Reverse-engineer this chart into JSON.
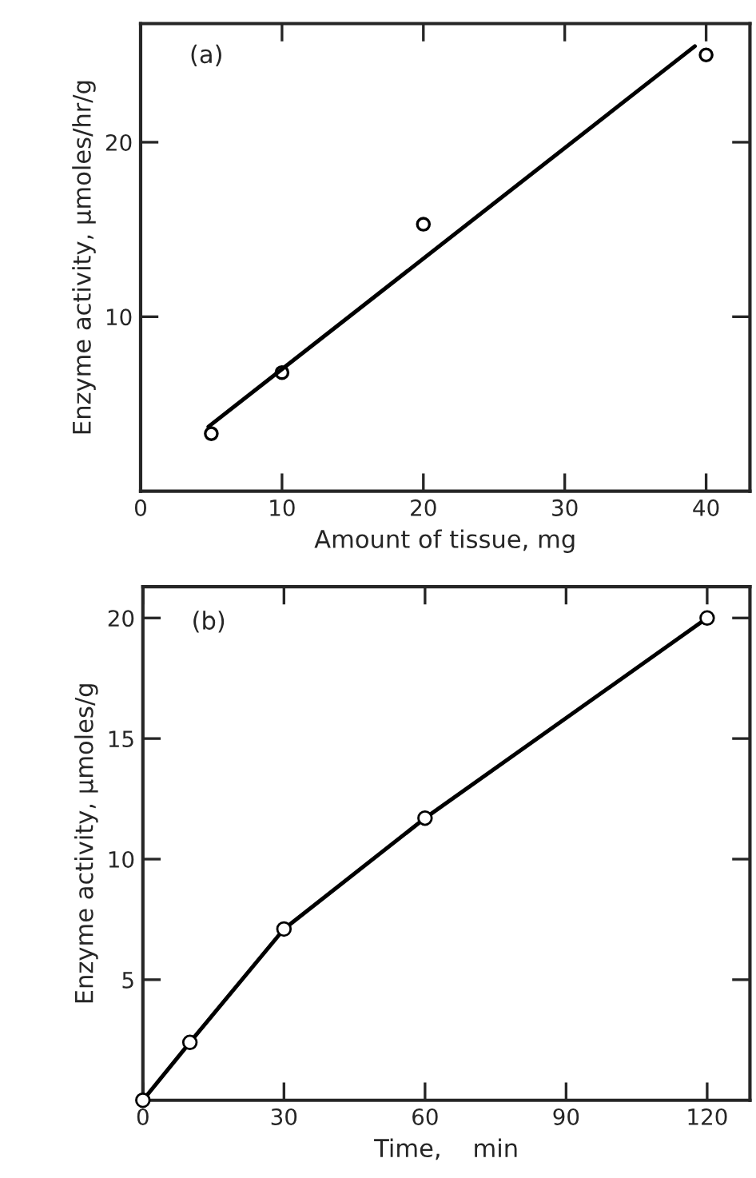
{
  "chart_data": [
    {
      "type": "scatter",
      "xlabel": "Amount of tissue, mg",
      "ylabel": "Enzyme activity, μmoles/hr/g",
      "annotations": [
        "(a)"
      ],
      "xlim": [
        0,
        43.1
      ],
      "ylim": [
        0,
        26.8
      ],
      "xticks": [
        {
          "value": 0,
          "label": "0"
        },
        10,
        20,
        30,
        40
      ],
      "yticks": [
        10,
        20
      ],
      "series": [
        {
          "color": "#000000",
          "marker": "circle",
          "x": [
            5,
            10,
            20,
            40
          ],
          "values": [
            3.3,
            6.8,
            15.3,
            25.0
          ]
        },
        {
          "type": "line",
          "color": "#000000",
          "marker": "none",
          "line_style": "solid",
          "x": [
            4.8,
            39.2
          ],
          "values": [
            3.7,
            25.5
          ]
        }
      ]
    },
    {
      "type": "line",
      "xlabel": "Time,    min",
      "ylabel": "Enzyme activity, μmoles/g",
      "annotations": [
        "(b)"
      ],
      "xlim": [
        0,
        129.1
      ],
      "ylim": [
        0,
        21.3
      ],
      "xticks": [
        {
          "value": 0,
          "label": "0"
        },
        30,
        60,
        90,
        120
      ],
      "yticks": [
        5,
        10,
        15,
        20
      ],
      "series": [
        {
          "color": "#000000",
          "marker": "circle",
          "line_style": "solid",
          "x": [
            0,
            10,
            30,
            60,
            120
          ],
          "values": [
            0,
            2.4,
            7.1,
            11.7,
            20.0
          ]
        }
      ]
    }
  ]
}
